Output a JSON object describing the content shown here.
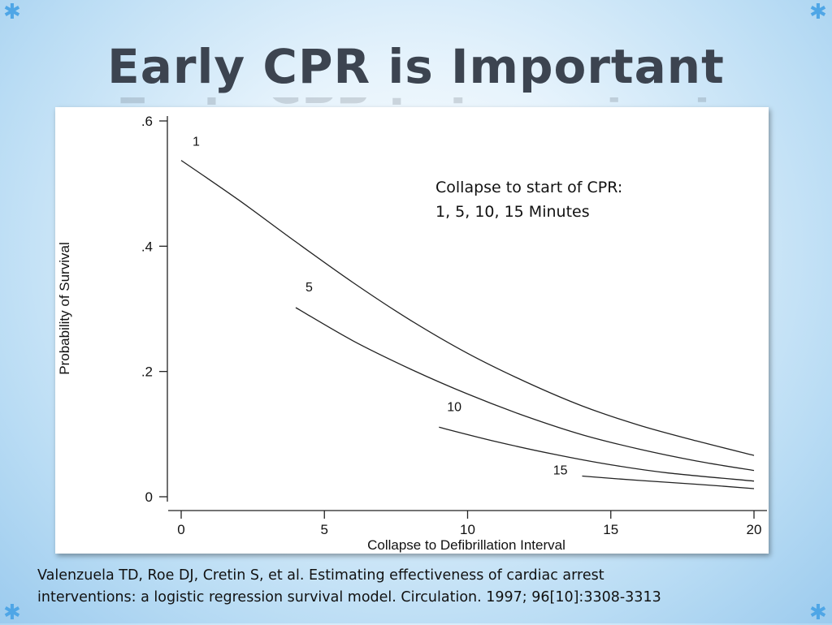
{
  "slide": {
    "title": "Early CPR is Important",
    "annotation_line1": "Collapse to start of CPR:",
    "annotation_line2": "1, 5, 10, 15 Minutes",
    "citation_line1": "Valenzuela TD, Roe DJ, Cretin S, et al. Estimating effectiveness of cardiac arrest",
    "citation_line2": "interventions: a logistic regression survival model. Circulation. 1997; 96[10]:3308-3313",
    "accent_color": "#4fa6e6",
    "title_color": "#3c4450"
  },
  "chart_data": {
    "type": "line",
    "title": "",
    "xlabel": "Collapse to Defibrillation Interval",
    "ylabel": "Probability of Survival",
    "xlim": [
      0,
      20
    ],
    "ylim": [
      0,
      0.6
    ],
    "x_ticks": [
      0,
      5,
      10,
      15,
      20
    ],
    "x_tick_labels": [
      "0",
      "5",
      "10",
      "15",
      "20"
    ],
    "y_ticks": [
      0,
      0.2,
      0.4,
      0.6
    ],
    "y_tick_labels": [
      "0",
      ".2",
      ".4",
      ".6"
    ],
    "grid": false,
    "legend": "none",
    "series": [
      {
        "name": "1",
        "x": [
          0,
          2,
          4,
          6,
          8,
          10,
          12,
          14,
          16,
          18,
          20
        ],
        "y": [
          0.537,
          0.474,
          0.407,
          0.342,
          0.282,
          0.229,
          0.184,
          0.145,
          0.114,
          0.089,
          0.066
        ]
      },
      {
        "name": "5",
        "x": [
          4,
          6,
          8,
          10,
          12,
          14,
          16,
          18,
          20
        ],
        "y": [
          0.302,
          0.249,
          0.204,
          0.164,
          0.129,
          0.099,
          0.076,
          0.057,
          0.042
        ]
      },
      {
        "name": "10",
        "x": [
          9,
          11,
          13,
          15,
          17,
          20
        ],
        "y": [
          0.111,
          0.088,
          0.068,
          0.051,
          0.038,
          0.025
        ]
      },
      {
        "name": "15",
        "x": [
          14,
          16,
          18,
          20
        ],
        "y": [
          0.033,
          0.026,
          0.02,
          0.013
        ]
      }
    ]
  }
}
